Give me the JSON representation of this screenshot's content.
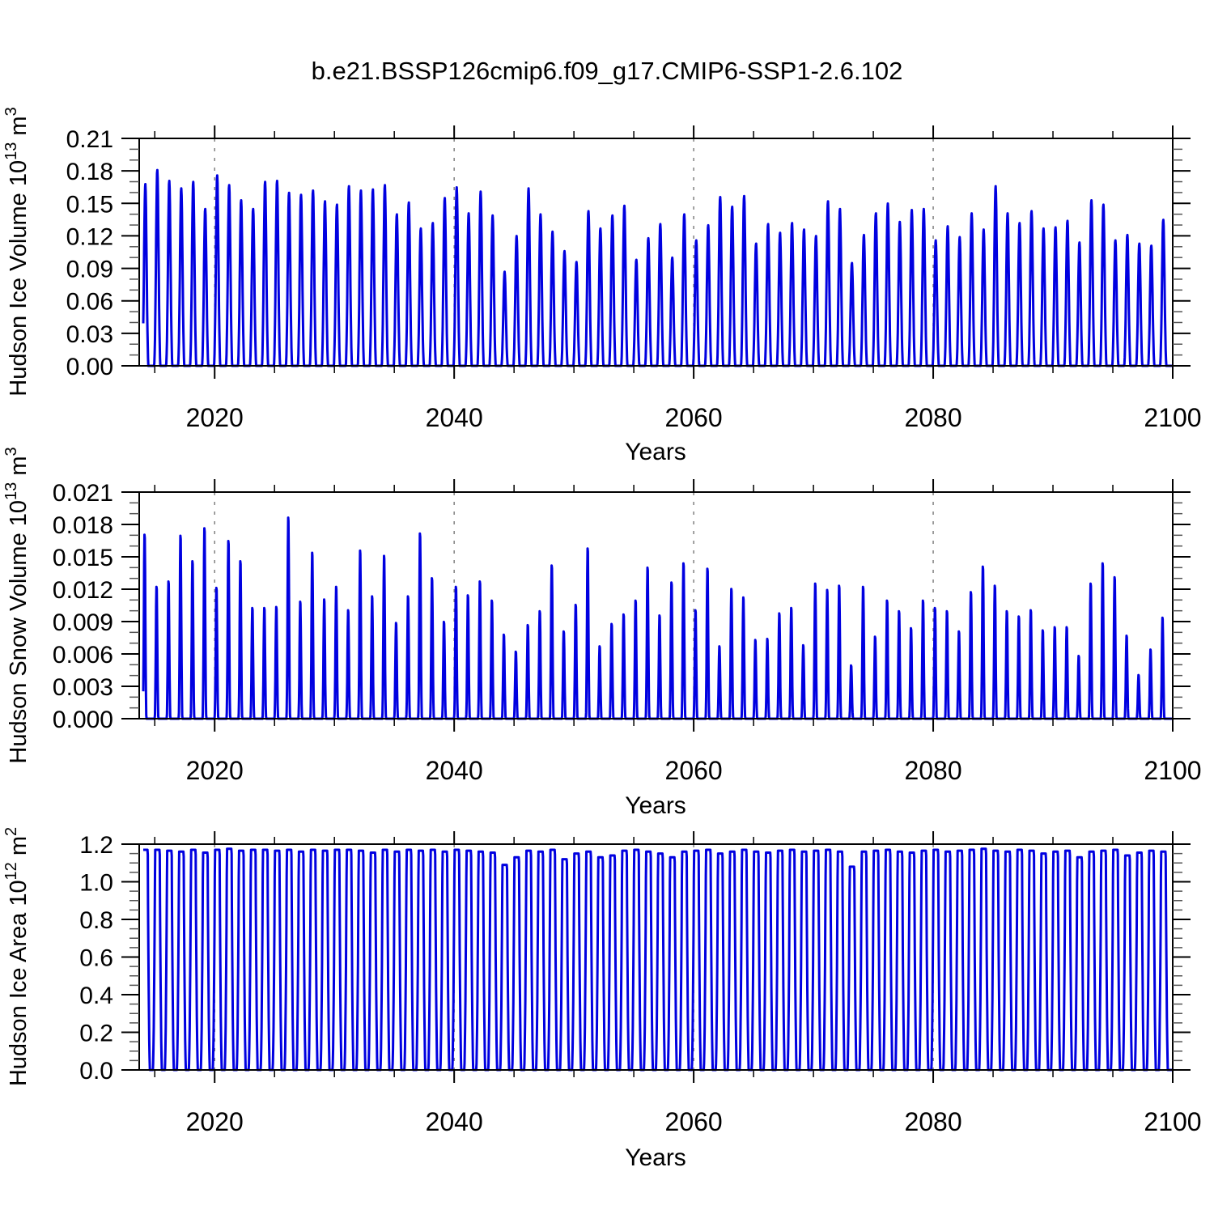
{
  "title": "b.e21.BSSP126cmip6.f09_g17.CMIP6-SSP1-2.6.102",
  "line_color": "#0000E0",
  "grid_color": "#808080",
  "axis_color": "#000000",
  "chart_data": [
    {
      "type": "line",
      "name": "hudson-ice-volume",
      "xlabel": "Years",
      "ylabel": {
        "prefix": "Hudson Ice Volume 10",
        "exp": "13",
        "unit": " m",
        "unit_exp": "3"
      },
      "xlim": [
        2013.7,
        2100
      ],
      "ylim": [
        0,
        0.21
      ],
      "x_major_ticks": [
        {
          "v": 2020,
          "label": "2020"
        },
        {
          "v": 2040,
          "label": "2040"
        },
        {
          "v": 2060,
          "label": "2060"
        },
        {
          "v": 2080,
          "label": "2080"
        },
        {
          "v": 2100,
          "label": "2100"
        }
      ],
      "x_minor_step": 5,
      "gridlines_x": [
        2020,
        2040,
        2060,
        2080
      ],
      "y_major_ticks": [
        {
          "v": 0.0,
          "label": "0.00"
        },
        {
          "v": 0.03,
          "label": "0.03"
        },
        {
          "v": 0.06,
          "label": "0.06"
        },
        {
          "v": 0.09,
          "label": "0.09"
        },
        {
          "v": 0.12,
          "label": "0.12"
        },
        {
          "v": 0.15,
          "label": "0.15"
        },
        {
          "v": 0.18,
          "label": "0.18"
        },
        {
          "v": 0.21,
          "label": "0.21"
        }
      ],
      "y_minor_step": 0.01,
      "seasonal_cycle": {
        "apex_phase": 0.21,
        "sigma": 0.15,
        "amp": 1.06,
        "floor": 0.06
      },
      "data_start": 2014.04,
      "data_end": 2100,
      "annual_peaks": {
        "start_year": 2014,
        "values": [
          0.168,
          0.181,
          0.171,
          0.164,
          0.17,
          0.145,
          0.176,
          0.167,
          0.153,
          0.145,
          0.17,
          0.171,
          0.16,
          0.158,
          0.162,
          0.152,
          0.149,
          0.166,
          0.162,
          0.163,
          0.167,
          0.14,
          0.151,
          0.127,
          0.132,
          0.155,
          0.165,
          0.141,
          0.161,
          0.139,
          0.087,
          0.12,
          0.164,
          0.14,
          0.124,
          0.106,
          0.096,
          0.143,
          0.127,
          0.139,
          0.148,
          0.098,
          0.118,
          0.131,
          0.1,
          0.14,
          0.116,
          0.13,
          0.156,
          0.147,
          0.157,
          0.113,
          0.131,
          0.123,
          0.132,
          0.126,
          0.12,
          0.152,
          0.145,
          0.095,
          0.121,
          0.141,
          0.15,
          0.133,
          0.144,
          0.145,
          0.116,
          0.129,
          0.119,
          0.141,
          0.126,
          0.166,
          0.141,
          0.132,
          0.143,
          0.127,
          0.128,
          0.134,
          0.114,
          0.153,
          0.149,
          0.116,
          0.121,
          0.113,
          0.111,
          0.135
        ]
      }
    },
    {
      "type": "line",
      "name": "hudson-snow-volume",
      "xlabel": "Years",
      "ylabel": {
        "prefix": "Hudson Snow Volume 10",
        "exp": "13",
        "unit": " m",
        "unit_exp": "3"
      },
      "xlim": [
        2013.7,
        2100
      ],
      "ylim": [
        0,
        0.021
      ],
      "x_major_ticks": [
        {
          "v": 2020,
          "label": "2020"
        },
        {
          "v": 2040,
          "label": "2040"
        },
        {
          "v": 2060,
          "label": "2060"
        },
        {
          "v": 2080,
          "label": "2080"
        },
        {
          "v": 2100,
          "label": "2100"
        }
      ],
      "x_minor_step": 5,
      "gridlines_x": [
        2020,
        2040,
        2060,
        2080
      ],
      "y_major_ticks": [
        {
          "v": 0.0,
          "label": "0.000"
        },
        {
          "v": 0.003,
          "label": "0.003"
        },
        {
          "v": 0.006,
          "label": "0.006"
        },
        {
          "v": 0.009,
          "label": "0.009"
        },
        {
          "v": 0.012,
          "label": "0.012"
        },
        {
          "v": 0.015,
          "label": "0.015"
        },
        {
          "v": 0.018,
          "label": "0.018"
        },
        {
          "v": 0.021,
          "label": "0.021"
        }
      ],
      "y_minor_step": 0.001,
      "seasonal_cycle": {
        "apex_phase": 0.15,
        "sigma": 0.085,
        "amp": 1.05,
        "floor": 0.05
      },
      "data_start": 2014.04,
      "data_end": 2100,
      "annual_peaks": {
        "start_year": 2014,
        "values": [
          0.0173,
          0.0124,
          0.0129,
          0.0172,
          0.0148,
          0.0179,
          0.0123,
          0.0167,
          0.0148,
          0.0104,
          0.0104,
          0.0105,
          0.0189,
          0.011,
          0.0156,
          0.0112,
          0.0124,
          0.0102,
          0.0158,
          0.0115,
          0.0153,
          0.009,
          0.0115,
          0.0174,
          0.0132,
          0.0091,
          0.0124,
          0.0116,
          0.0129,
          0.0111,
          0.0079,
          0.0063,
          0.0088,
          0.0101,
          0.0144,
          0.0082,
          0.0107,
          0.016,
          0.0068,
          0.0089,
          0.0098,
          0.0111,
          0.0142,
          0.0097,
          0.0128,
          0.0146,
          0.0102,
          0.0141,
          0.0068,
          0.0122,
          0.0114,
          0.0074,
          0.0075,
          0.0099,
          0.0104,
          0.0069,
          0.0127,
          0.0121,
          0.0125,
          0.005,
          0.0124,
          0.0077,
          0.0111,
          0.0101,
          0.0085,
          0.0111,
          0.0104,
          0.0101,
          0.0082,
          0.0119,
          0.0143,
          0.0125,
          0.0101,
          0.0096,
          0.0102,
          0.0083,
          0.0086,
          0.0086,
          0.0059,
          0.0127,
          0.0146,
          0.0133,
          0.0078,
          0.0041,
          0.0065,
          0.0095
        ]
      }
    },
    {
      "type": "line",
      "name": "hudson-ice-area",
      "xlabel": "Years",
      "ylabel": {
        "prefix": "Hudson Ice Area 10",
        "exp": "12",
        "unit": " m",
        "unit_exp": "2"
      },
      "xlim": [
        2013.7,
        2100
      ],
      "ylim": [
        0,
        1.2
      ],
      "x_major_ticks": [
        {
          "v": 2020,
          "label": "2020"
        },
        {
          "v": 2040,
          "label": "2040"
        },
        {
          "v": 2060,
          "label": "2060"
        },
        {
          "v": 2080,
          "label": "2080"
        },
        {
          "v": 2100,
          "label": "2100"
        }
      ],
      "x_minor_step": 5,
      "gridlines_x": [
        2020,
        2040,
        2060,
        2080
      ],
      "y_major_ticks": [
        {
          "v": 0.0,
          "label": "0.0"
        },
        {
          "v": 0.2,
          "label": "0.2"
        },
        {
          "v": 0.4,
          "label": "0.4"
        },
        {
          "v": 0.6,
          "label": "0.6"
        },
        {
          "v": 0.8,
          "label": "0.8"
        },
        {
          "v": 1.0,
          "label": "1.0"
        },
        {
          "v": 1.2,
          "label": "1.2"
        }
      ],
      "y_minor_step": 0.05,
      "seasonal_cycle": {
        "apex_phase": 0.22,
        "sigma": 0.21,
        "amp": 2.6,
        "floor": 0.12
      },
      "data_start": 2014.04,
      "data_end": 2100,
      "annual_peaks": {
        "start_year": 2014,
        "values": [
          1.17,
          1.17,
          1.165,
          1.16,
          1.17,
          1.155,
          1.17,
          1.175,
          1.165,
          1.17,
          1.17,
          1.165,
          1.17,
          1.16,
          1.17,
          1.165,
          1.17,
          1.17,
          1.165,
          1.155,
          1.17,
          1.16,
          1.17,
          1.165,
          1.17,
          1.16,
          1.17,
          1.165,
          1.16,
          1.155,
          1.09,
          1.13,
          1.165,
          1.16,
          1.17,
          1.12,
          1.15,
          1.16,
          1.13,
          1.14,
          1.165,
          1.17,
          1.16,
          1.15,
          1.13,
          1.16,
          1.165,
          1.17,
          1.15,
          1.16,
          1.17,
          1.16,
          1.155,
          1.165,
          1.17,
          1.16,
          1.165,
          1.17,
          1.16,
          1.08,
          1.16,
          1.165,
          1.17,
          1.16,
          1.155,
          1.165,
          1.17,
          1.16,
          1.165,
          1.17,
          1.175,
          1.165,
          1.16,
          1.17,
          1.165,
          1.15,
          1.16,
          1.165,
          1.13,
          1.16,
          1.165,
          1.17,
          1.14,
          1.155,
          1.165,
          1.16
        ]
      }
    }
  ]
}
